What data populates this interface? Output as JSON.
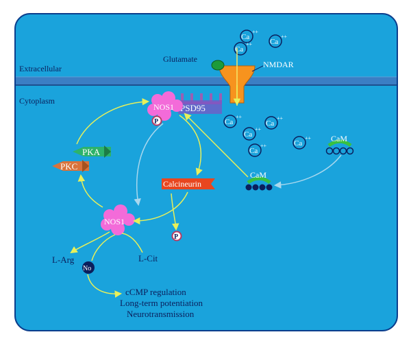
{
  "regions": {
    "extracellular": "Extracellular",
    "cytoplasm": "Cytoplasm"
  },
  "molecules": {
    "glutamate": "Glutamate",
    "nmdar": "NMDAR",
    "ca": "Ca",
    "ca_charge": "++",
    "nos1": "NOS1",
    "psd95": "PSD95",
    "phosphate": "P",
    "pka": "PKA",
    "pkc": "PKC",
    "calcineurin": "Calcineurin",
    "cam": "CaM",
    "l_arg": "L-Arg",
    "l_cit": "L-Cit",
    "no": "No"
  },
  "outcomes": [
    "cCMP regulation",
    "Long-term potentiation",
    "Neurotransmission"
  ],
  "colors": {
    "cell_fill": "#1aa3dc",
    "membrane": "#1d4f8e",
    "arrow_yellow": "#e8f05a",
    "arrow_lightblue": "#a9d8ee",
    "nos1_pink": "#f36bd9",
    "psd95_purple": "#9a5fb3",
    "nmdar_orange": "#f7931e",
    "glutamate_green": "#1d9b3a",
    "pka_green": "#2db36a",
    "pkc_orange": "#d9733b",
    "calcineurin_red": "#e8461f",
    "cam_green": "#39c140",
    "dark_navy": "#0b1f5c"
  }
}
